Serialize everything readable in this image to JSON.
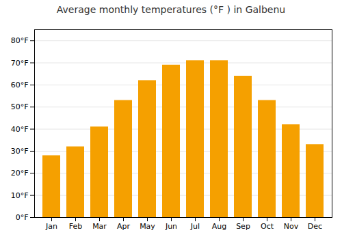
{
  "chart_data": {
    "type": "bar",
    "title": "Average monthly temperatures (°F ) in Galbenu",
    "categories": [
      "Jan",
      "Feb",
      "Mar",
      "Apr",
      "May",
      "Jun",
      "Jul",
      "Aug",
      "Sep",
      "Oct",
      "Nov",
      "Dec"
    ],
    "values": [
      28,
      32,
      41,
      53,
      62,
      69,
      71,
      71,
      64,
      53,
      42,
      33
    ],
    "color": "#F5A000",
    "ylim": [
      0,
      85
    ],
    "yticks": [
      {
        "value": 0,
        "label": "0°F"
      },
      {
        "value": 10,
        "label": "10°F"
      },
      {
        "value": 20,
        "label": "20°F"
      },
      {
        "value": 30,
        "label": "30°F"
      },
      {
        "value": 40,
        "label": "40°F"
      },
      {
        "value": 50,
        "label": "50°F"
      },
      {
        "value": 60,
        "label": "60°F"
      },
      {
        "value": 70,
        "label": "70°F"
      },
      {
        "value": 80,
        "label": "80°F"
      }
    ],
    "grid": true
  }
}
